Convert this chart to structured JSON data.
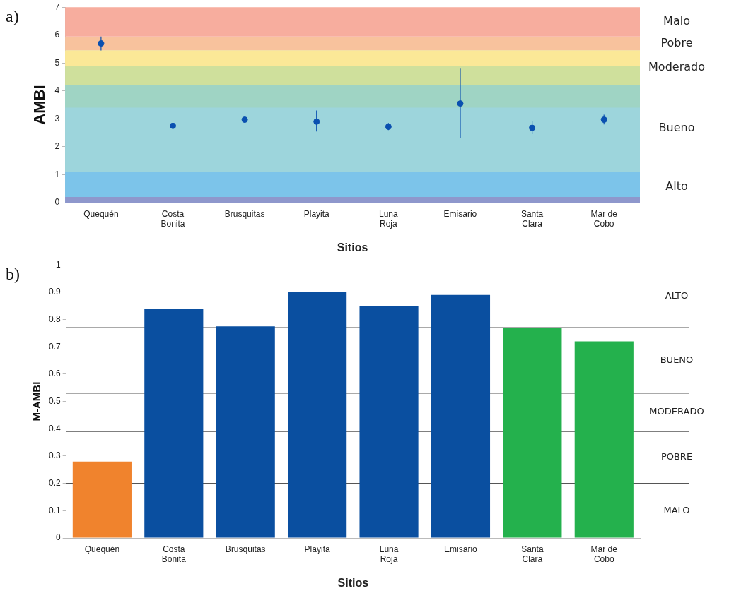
{
  "chart_data": [
    {
      "type": "scatter",
      "annotations": [
        "a)"
      ],
      "ylabel": "AMBI",
      "xlabel": "Sitios",
      "categories": [
        "Quequén",
        "Costa\nBonita",
        "Brusquitas",
        "Playita",
        "Luna\nRoja",
        "Emisario",
        "Santa\nClara",
        "Mar de\nCobo"
      ],
      "series": [
        {
          "color": "#0a50b0",
          "values": [
            5.7,
            2.75,
            2.97,
            2.9,
            2.72,
            3.55,
            2.68,
            2.97
          ],
          "errors": [
            [
              5.45,
              5.95
            ],
            null,
            null,
            [
              2.55,
              3.3
            ],
            [
              2.6,
              2.85
            ],
            [
              2.3,
              4.8
            ],
            [
              2.45,
              2.92
            ],
            [
              2.8,
              3.15
            ]
          ]
        }
      ],
      "ylim": [
        0,
        7
      ],
      "yticks": [
        0,
        1,
        2,
        3,
        4,
        5,
        6,
        7
      ],
      "grid": false,
      "legend": false,
      "marker": "circle",
      "bands": [
        {
          "axis": "y",
          "from": 0,
          "to": 1.1,
          "label": "Alto",
          "color": "#7cc4ea"
        },
        {
          "axis": "y",
          "from": 1.1,
          "to": 4.2,
          "label": "Bueno",
          "color": "#9dd5dc"
        },
        {
          "axis": "y",
          "from": 4.2,
          "to": 5.45,
          "label": "Moderado",
          "color": "#cfe09c"
        },
        {
          "axis": "y",
          "from": 5.45,
          "to": 5.95,
          "label": "Pobre",
          "color": "#f8c29d"
        },
        {
          "axis": "y",
          "from": 5.95,
          "to": 7,
          "label": "Malo",
          "color": "#f7ad9e"
        },
        {
          "axis": "y",
          "from": 0,
          "to": 0.2,
          "color": "#8e97cc"
        },
        {
          "axis": "y",
          "from": 3.4,
          "to": 4.2,
          "color": "#9fd4c4"
        },
        {
          "axis": "y",
          "from": 4.9,
          "to": 5.45,
          "color": "#fbe897"
        }
      ]
    },
    {
      "type": "bar",
      "annotations": [
        "b)",
        "ALTO",
        "BUENO",
        "MODERADO",
        "POBRE",
        "MALO"
      ],
      "ylabel": "M-AMBI",
      "xlabel": "Sitios",
      "categories": [
        "Quequén",
        "Costa\nBonita",
        "Brusquitas",
        "Playita",
        "Luna\nRoja",
        "Emisario",
        "Santa\nClara",
        "Mar de\nCobo"
      ],
      "values": [
        0.28,
        0.84,
        0.775,
        0.9,
        0.85,
        0.89,
        0.77,
        0.72
      ],
      "colors": [
        "#f0832d",
        "#0a4fa0",
        "#0a4fa0",
        "#0a4fa0",
        "#0a4fa0",
        "#0a4fa0",
        "#24b14d",
        "#24b14d"
      ],
      "ylim": [
        0,
        1
      ],
      "yticks": [
        0,
        0.1,
        0.2,
        0.3,
        0.4,
        0.5,
        0.6,
        0.7,
        0.8,
        0.9,
        1
      ],
      "grid": false,
      "legend": false,
      "ref_lines": [
        {
          "axis": "y",
          "value": 0.77
        },
        {
          "axis": "y",
          "value": 0.53
        },
        {
          "axis": "y",
          "value": 0.39
        },
        {
          "axis": "y",
          "value": 0.2
        }
      ]
    }
  ]
}
